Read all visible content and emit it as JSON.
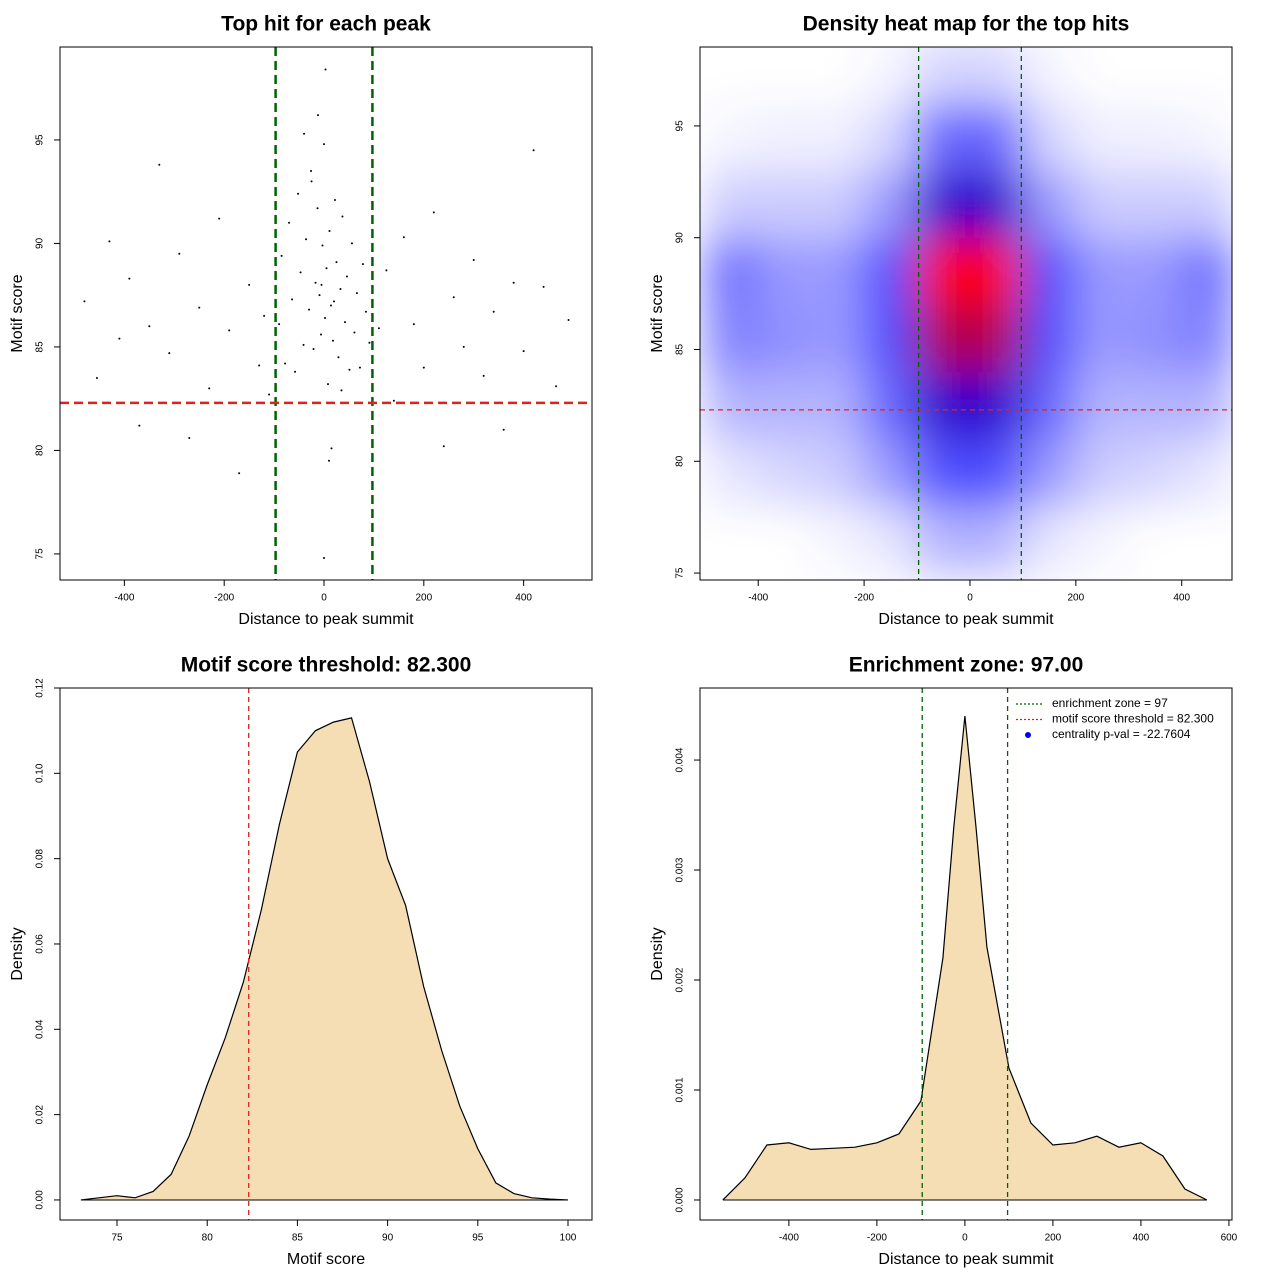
{
  "chart_data": [
    {
      "type": "scatter",
      "title": "Top hit for each peak",
      "xlabel": "Distance to peak summit",
      "ylabel": "Motif score",
      "x": [
        -480,
        -455,
        -430,
        -410,
        -390,
        -370,
        -350,
        -330,
        -310,
        -290,
        -270,
        -250,
        -230,
        -210,
        -190,
        -170,
        -150,
        -130,
        -120,
        -110,
        -90,
        -85,
        -78,
        -70,
        -64,
        -58,
        -52,
        -47,
        -41,
        -36,
        -30,
        -26,
        -21,
        -17,
        -13,
        -9,
        -6,
        -3,
        0,
        2,
        5,
        8,
        11,
        14,
        18,
        22,
        25,
        29,
        33,
        37,
        42,
        46,
        51,
        56,
        61,
        66,
        72,
        78,
        84,
        91,
        -12,
        3,
        15,
        -25,
        35,
        -5,
        10,
        -40,
        20,
        0,
        110,
        125,
        140,
        160,
        180,
        200,
        220,
        240,
        260,
        280,
        300,
        320,
        340,
        360,
        380,
        400,
        420,
        440,
        465,
        490
      ],
      "y": [
        87.2,
        83.5,
        90.1,
        85.4,
        88.3,
        81.2,
        86.0,
        93.8,
        84.7,
        89.5,
        80.6,
        86.9,
        83.0,
        91.2,
        85.8,
        78.9,
        88.0,
        84.1,
        86.5,
        82.7,
        86.1,
        89.4,
        84.2,
        91.0,
        87.3,
        83.8,
        92.4,
        88.6,
        85.1,
        90.2,
        86.8,
        93.5,
        84.9,
        88.1,
        91.7,
        87.5,
        85.6,
        89.9,
        94.8,
        86.4,
        88.8,
        83.2,
        90.6,
        87.0,
        85.3,
        92.1,
        89.1,
        84.5,
        87.8,
        91.3,
        86.2,
        88.4,
        83.9,
        90.0,
        85.7,
        87.6,
        84.0,
        89.0,
        86.7,
        85.2,
        96.2,
        98.4,
        80.1,
        93.0,
        82.9,
        88.0,
        79.5,
        95.3,
        87.2,
        74.8,
        85.9,
        88.7,
        82.4,
        90.3,
        86.1,
        84.0,
        91.5,
        80.2,
        87.4,
        85.0,
        89.2,
        83.6,
        86.7,
        81.0,
        88.1,
        84.8,
        94.5,
        87.9,
        83.1,
        86.3
      ],
      "color": "#000000",
      "xlim": [
        -529,
        537
      ],
      "xticks": [
        -400,
        -200,
        0,
        200,
        400
      ],
      "ylim": [
        73.74,
        99.49
      ],
      "yticks": [
        75,
        80,
        85,
        90,
        95
      ],
      "vlines": [
        -97,
        97
      ],
      "vline_color": "#006400",
      "hline": 82.3,
      "hline_color": "#dd2222"
    },
    {
      "type": "heatmap",
      "title": "Density heat map for the top hits",
      "xlabel": "Distance to peak summit",
      "ylabel": "Motif score",
      "x": [
        -450,
        -350,
        -250,
        -150,
        -50,
        50,
        150,
        250,
        350,
        450
      ],
      "y": [
        76.5,
        79.5,
        82.5,
        85.5,
        88.5,
        91.5,
        94.5,
        97.5
      ],
      "z": [
        [
          0,
          0,
          0.02,
          0.05,
          0.15,
          0.15,
          0.05,
          0.02,
          0,
          0
        ],
        [
          0.05,
          0.08,
          0.1,
          0.2,
          0.35,
          0.35,
          0.2,
          0.1,
          0.08,
          0.05
        ],
        [
          0.15,
          0.15,
          0.15,
          0.3,
          0.6,
          0.6,
          0.3,
          0.15,
          0.15,
          0.15
        ],
        [
          0.25,
          0.22,
          0.2,
          0.35,
          0.85,
          0.85,
          0.35,
          0.2,
          0.22,
          0.25
        ],
        [
          0.28,
          0.2,
          0.2,
          0.35,
          1.0,
          1.0,
          0.35,
          0.2,
          0.2,
          0.28
        ],
        [
          0.1,
          0.1,
          0.1,
          0.2,
          0.6,
          0.6,
          0.2,
          0.1,
          0.1,
          0.1
        ],
        [
          0.02,
          0.03,
          0.03,
          0.08,
          0.3,
          0.3,
          0.08,
          0.03,
          0.03,
          0.02
        ],
        [
          0,
          0,
          0,
          0.02,
          0.08,
          0.08,
          0.02,
          0,
          0,
          0
        ]
      ],
      "colors": [
        "#ffffff",
        "#0000ff",
        "#ff0000"
      ],
      "xlim": [
        -510,
        495
      ],
      "xticks": [
        -400,
        -200,
        0,
        200,
        400
      ],
      "ylim": [
        74.69,
        98.53
      ],
      "yticks": [
        75,
        80,
        85,
        90,
        95
      ],
      "vlines": [
        -97,
        97
      ],
      "vline_color": "#006400",
      "hline": 82.3,
      "hline_color": "#dd2222"
    },
    {
      "type": "density",
      "title": "Motif score threshold: 82.300",
      "xlabel": "Motif score",
      "ylabel": "Density",
      "x": [
        73,
        74,
        75,
        76,
        77,
        78,
        79,
        80,
        81,
        82,
        83,
        84,
        85,
        86,
        87,
        88,
        89,
        90,
        91,
        92,
        93,
        94,
        95,
        96,
        97,
        98,
        99,
        100
      ],
      "values": [
        0,
        0.0005,
        0.001,
        0.0005,
        0.002,
        0.006,
        0.015,
        0.027,
        0.038,
        0.051,
        0.068,
        0.088,
        0.105,
        0.11,
        0.112,
        0.113,
        0.098,
        0.08,
        0.069,
        0.05,
        0.035,
        0.022,
        0.012,
        0.004,
        0.0015,
        0.0005,
        0.0002,
        0
      ],
      "color": "#f5deb3",
      "xlim": [
        71.84,
        101.33
      ],
      "xticks": [
        75,
        80,
        85,
        90,
        95,
        100
      ],
      "ylim": [
        -0.0047,
        0.12
      ],
      "yticks": [
        {
          "value": 0,
          "label": "0.00"
        },
        {
          "value": 0.02,
          "label": "0.02"
        },
        {
          "value": 0.04,
          "label": "0.04"
        },
        {
          "value": 0.06,
          "label": "0.06"
        },
        {
          "value": 0.08,
          "label": "0.08"
        },
        {
          "value": 0.1,
          "label": "0.10"
        },
        {
          "value": 0.12,
          "label": "0.12"
        }
      ],
      "vlines": [
        82.3
      ],
      "vline_color": "#dd2222"
    },
    {
      "type": "density",
      "title": "Enrichment zone: 97.00",
      "xlabel": "Distance to peak summit",
      "ylabel": "Density",
      "x": [
        -550,
        -500,
        -450,
        -400,
        -350,
        -300,
        -250,
        -200,
        -150,
        -100,
        -50,
        -25,
        0,
        25,
        50,
        100,
        150,
        200,
        250,
        300,
        350,
        400,
        450,
        500,
        550
      ],
      "values": [
        0,
        0.0002,
        0.0005,
        0.00052,
        0.00046,
        0.00047,
        0.00048,
        0.00052,
        0.0006,
        0.0009,
        0.0022,
        0.0034,
        0.0044,
        0.0034,
        0.0023,
        0.0012,
        0.0007,
        0.0005,
        0.00052,
        0.00058,
        0.00048,
        0.00052,
        0.0004,
        0.0001,
        0
      ],
      "color": "#f5deb3",
      "xlim": [
        -602,
        607
      ],
      "xticks": [
        -400,
        -200,
        0,
        200,
        400,
        600
      ],
      "ylim": [
        -0.000182,
        0.004655
      ],
      "yticks": [
        {
          "value": 0,
          "label": "0.000"
        },
        {
          "value": 0.001,
          "label": "0.001"
        },
        {
          "value": 0.002,
          "label": "0.002"
        },
        {
          "value": 0.003,
          "label": "0.003"
        },
        {
          "value": 0.004,
          "label": "0.004"
        }
      ],
      "vlines": [
        -97,
        97
      ],
      "vline_color": "#006400",
      "legend_position": "top-right",
      "legend": [
        {
          "name": "enrichment zone = 97",
          "color": "#006400",
          "style": "line"
        },
        {
          "name": "motif score threshold = 82.300",
          "color": "#dd2222",
          "style": "line"
        },
        {
          "name": "centrality p-val = -22.7604",
          "color": "#0000ff",
          "style": "point"
        }
      ]
    }
  ]
}
